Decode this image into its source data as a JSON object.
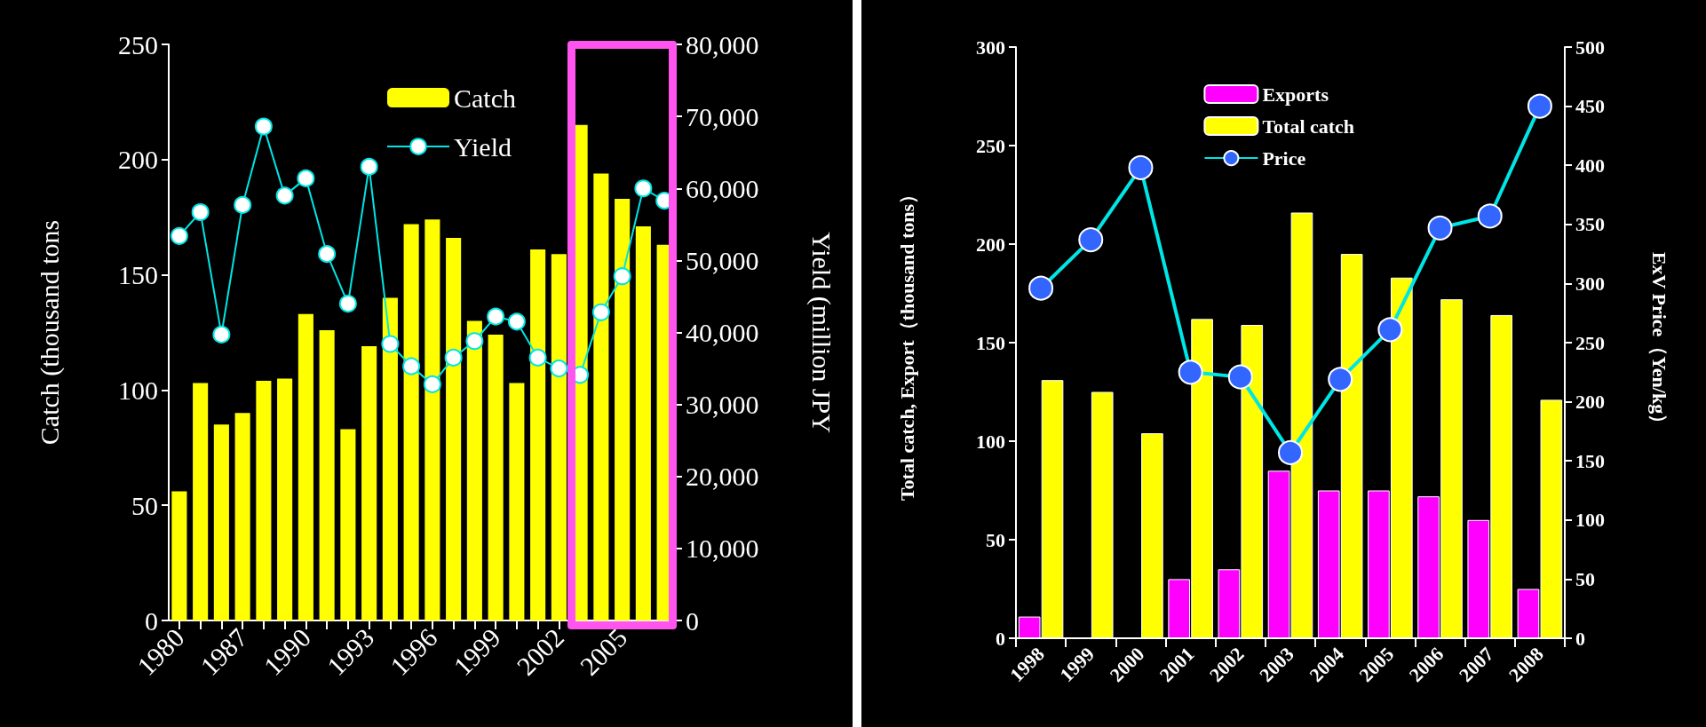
{
  "chart_data": [
    {
      "type": "bar",
      "ylabel": "Catch (thousand tons",
      "y2label": "Yield (million JPY",
      "categories": [
        "1980",
        null,
        null,
        "1987",
        null,
        null,
        "1990",
        null,
        null,
        "1993",
        null,
        null,
        "1996",
        null,
        null,
        "1999",
        null,
        null,
        "2002",
        null,
        null,
        "2005",
        null,
        null
      ],
      "series": [
        {
          "name": "Catch",
          "color": "#ffff00",
          "values": [
            56,
            103,
            85,
            90,
            104,
            105,
            133,
            126,
            83,
            119,
            140,
            172,
            174,
            166,
            130,
            124,
            103,
            161,
            159,
            215,
            194,
            183,
            171,
            163
          ]
        },
        {
          "name": "Yield",
          "type": "line",
          "axis": "y2",
          "color": "#00e5e5",
          "values": [
            53400,
            56700,
            39700,
            57700,
            68600,
            59000,
            61400,
            50900,
            44000,
            63000,
            38400,
            35300,
            32800,
            36500,
            38800,
            42200,
            41500,
            36500,
            35000,
            34100,
            42800,
            47800,
            60000,
            58300
          ]
        }
      ],
      "ylim": [
        0,
        250
      ],
      "yticks": [
        0,
        50,
        100,
        150,
        200,
        250
      ],
      "y2lim": [
        0,
        80000
      ],
      "y2ticks": [
        {
          "value": 0,
          "label": "0"
        },
        {
          "value": 10000,
          "label": "10,000"
        },
        {
          "value": 20000,
          "label": "20,000"
        },
        {
          "value": 30000,
          "label": "30,000"
        },
        {
          "value": 40000,
          "label": "40,000"
        },
        {
          "value": 50000,
          "label": "50,000"
        },
        {
          "value": 60000,
          "label": "60,000"
        },
        {
          "value": 70000,
          "label": "70,000"
        },
        {
          "value": 80000,
          "label": "80,000"
        }
      ],
      "marker": "circle",
      "grid": false,
      "legend": "top right"
    },
    {
      "type": "bar",
      "ylabel": "Total catch, Export（thousand tons）",
      "y2label": "ExV Price（Yen/kg）",
      "categories": [
        "1998",
        "1999",
        "2000",
        "2001",
        "2002",
        "2003",
        "2004",
        "2005",
        "2006",
        "2007",
        "2008"
      ],
      "series": [
        {
          "name": "Exports",
          "color": "#ff00ff",
          "values": [
            11,
            0,
            0,
            30,
            35,
            85,
            75,
            75,
            72,
            60,
            25
          ]
        },
        {
          "name": "Total catch",
          "color": "#ffff00",
          "values": [
            131,
            125,
            104,
            162,
            159,
            216,
            195,
            183,
            172,
            164,
            121
          ]
        },
        {
          "name": "Price",
          "type": "line",
          "axis": "y2",
          "color": "#00e5e5",
          "values": [
            296,
            337,
            398,
            225,
            221,
            157,
            219,
            261,
            347,
            357,
            450
          ]
        }
      ],
      "ylim": [
        0,
        300
      ],
      "yticks": [
        0,
        50,
        100,
        150,
        200,
        250,
        300
      ],
      "y2lim": [
        0,
        500
      ],
      "y2ticks": [
        0,
        50,
        100,
        150,
        200,
        250,
        300,
        350,
        400,
        450,
        500
      ],
      "marker": "circle",
      "grid": false,
      "legend": "top"
    }
  ]
}
